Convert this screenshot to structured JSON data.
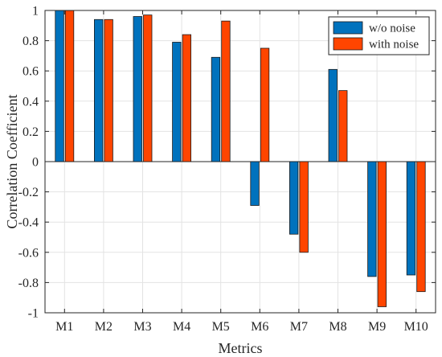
{
  "chart_data": {
    "type": "bar",
    "xlabel": "Metrics",
    "ylabel": "Correlation Coefficient",
    "categories": [
      "M1",
      "M2",
      "M3",
      "M4",
      "M5",
      "M6",
      "M7",
      "M8",
      "M9",
      "M10"
    ],
    "ylim": [
      -1,
      1
    ],
    "yticks": [
      -1,
      -0.8,
      -0.6,
      -0.4,
      -0.2,
      0,
      0.2,
      0.4,
      0.6,
      0.8,
      1
    ],
    "ytick_labels": [
      "-1",
      "-0.8",
      "-0.6",
      "-0.4",
      "-0.2",
      "0",
      "0.2",
      "0.4",
      "0.6",
      "0.8",
      "1"
    ],
    "grid": true,
    "legend_position": "top-right",
    "series": [
      {
        "name": "w/o noise",
        "color": "#0072BD",
        "values": [
          1.0,
          0.94,
          0.96,
          0.79,
          0.69,
          -0.29,
          -0.48,
          0.61,
          -0.76,
          -0.75
        ]
      },
      {
        "name": "with noise",
        "color": "#FF4500",
        "values": [
          1.0,
          0.94,
          0.97,
          0.84,
          0.93,
          0.75,
          -0.6,
          0.47,
          -0.96,
          -0.86
        ]
      }
    ]
  }
}
